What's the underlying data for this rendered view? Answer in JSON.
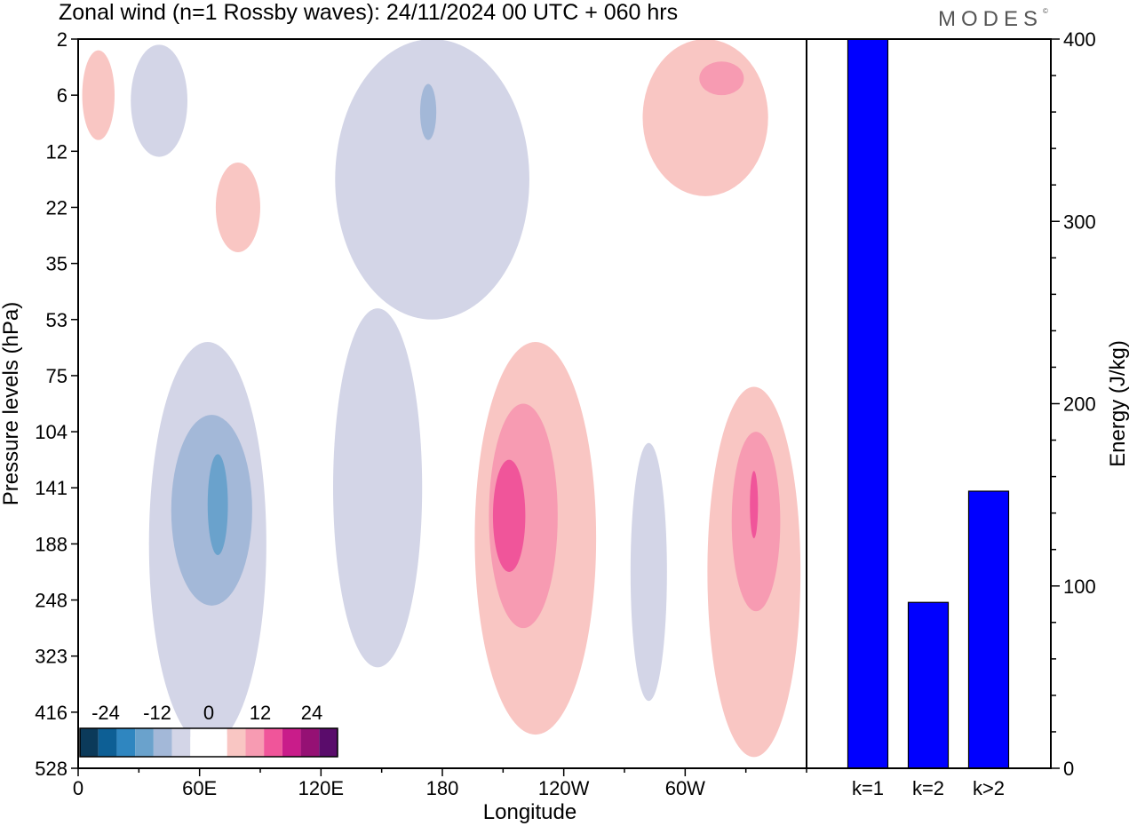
{
  "title": "Zonal wind (n=1 Rossby waves):  24/11/2024  00 UTC  + 060 hrs",
  "logo": "MODES",
  "logo_mark": "©",
  "colors": {
    "bar": "#0000ff",
    "neg": [
      "#0b3a5a",
      "#0d5f95",
      "#2f86c0",
      "#6aa2cc",
      "#a3b8d8",
      "#d3d5e7"
    ],
    "pos": [
      "#f9c6c3",
      "#f79bb2",
      "#f0559a",
      "#c91c8a",
      "#951174",
      "#5a0c6b"
    ]
  },
  "chart_data": [
    {
      "type": "heatmap",
      "title": "Zonal wind (n=1 Rossby waves):  24/11/2024  00 UTC  + 060 hrs",
      "xlabel": "Longitude",
      "ylabel": "Pressure levels (hPa)",
      "x_ticks": [
        "0",
        "60E",
        "120E",
        "180",
        "120W",
        "60W"
      ],
      "x_tick_degrees": [
        0,
        60,
        120,
        180,
        240,
        300
      ],
      "xlim": [
        0,
        360
      ],
      "y_ticks": [
        "2",
        "6",
        "12",
        "22",
        "35",
        "53",
        "75",
        "104",
        "141",
        "188",
        "248",
        "323",
        "416",
        "528"
      ],
      "colorbar": {
        "labels": [
          "-24",
          "-12",
          "0",
          "12",
          "24"
        ],
        "levels": [
          -30,
          -24,
          -18,
          -12,
          -6,
          -3,
          3,
          6,
          12,
          18,
          24,
          30
        ]
      },
      "regions": [
        {
          "sign": "neg",
          "level": 1,
          "lon_center": 40,
          "level_center": 1.1,
          "lon_halfwidth": 14,
          "level_halfwidth": 1.0
        },
        {
          "sign": "neg",
          "level": 1,
          "lon_center": 175,
          "level_center": 2.5,
          "lon_halfwidth": 48,
          "level_halfwidth": 2.5
        },
        {
          "sign": "neg",
          "level": 2,
          "lon_center": 173,
          "level_center": 1.3,
          "lon_halfwidth": 4,
          "level_halfwidth": 0.5
        },
        {
          "sign": "neg",
          "level": 1,
          "lon_center": 64,
          "level_center": 9.0,
          "lon_halfwidth": 29,
          "level_halfwidth": 3.6
        },
        {
          "sign": "neg",
          "level": 2,
          "lon_center": 66,
          "level_center": 8.4,
          "lon_halfwidth": 20,
          "level_halfwidth": 1.7
        },
        {
          "sign": "neg",
          "level": 3,
          "lon_center": 69,
          "level_center": 8.3,
          "lon_halfwidth": 5,
          "level_halfwidth": 0.9
        },
        {
          "sign": "neg",
          "level": 1,
          "lon_center": 148,
          "level_center": 8.0,
          "lon_halfwidth": 22,
          "level_halfwidth": 3.2
        },
        {
          "sign": "neg",
          "level": 1,
          "lon_center": 282,
          "level_center": 9.5,
          "lon_halfwidth": 9,
          "level_halfwidth": 2.3
        },
        {
          "sign": "pos",
          "level": 1,
          "lon_center": 10,
          "level_center": 1.0,
          "lon_halfwidth": 8,
          "level_halfwidth": 0.8
        },
        {
          "sign": "pos",
          "level": 1,
          "lon_center": 79,
          "level_center": 3.0,
          "lon_halfwidth": 11,
          "level_halfwidth": 0.8
        },
        {
          "sign": "pos",
          "level": 1,
          "lon_center": 310,
          "level_center": 1.4,
          "lon_halfwidth": 31,
          "level_halfwidth": 1.4
        },
        {
          "sign": "pos",
          "level": 2,
          "lon_center": 318,
          "level_center": 0.7,
          "lon_halfwidth": 11,
          "level_halfwidth": 0.3
        },
        {
          "sign": "pos",
          "level": 1,
          "lon_center": 226,
          "level_center": 8.9,
          "lon_halfwidth": 30,
          "level_halfwidth": 3.5
        },
        {
          "sign": "pos",
          "level": 2,
          "lon_center": 220,
          "level_center": 8.5,
          "lon_halfwidth": 17,
          "level_halfwidth": 2.0
        },
        {
          "sign": "pos",
          "level": 3,
          "lon_center": 213,
          "level_center": 8.5,
          "lon_halfwidth": 8,
          "level_halfwidth": 1.0
        },
        {
          "sign": "pos",
          "level": 1,
          "lon_center": 334,
          "level_center": 9.5,
          "lon_halfwidth": 23,
          "level_halfwidth": 3.3
        },
        {
          "sign": "pos",
          "level": 2,
          "lon_center": 335,
          "level_center": 8.6,
          "lon_halfwidth": 12,
          "level_halfwidth": 1.6
        },
        {
          "sign": "pos",
          "level": 3,
          "lon_center": 334,
          "level_center": 8.3,
          "lon_halfwidth": 2,
          "level_halfwidth": 0.6
        }
      ]
    },
    {
      "type": "bar",
      "categories": [
        "k=1",
        "k=2",
        "k>2"
      ],
      "values": [
        400,
        91,
        152
      ],
      "ylabel": "Energy (J/kg)",
      "ylim": [
        0,
        400
      ],
      "y_ticks": [
        "0",
        "100",
        "200",
        "300",
        "400"
      ]
    }
  ]
}
